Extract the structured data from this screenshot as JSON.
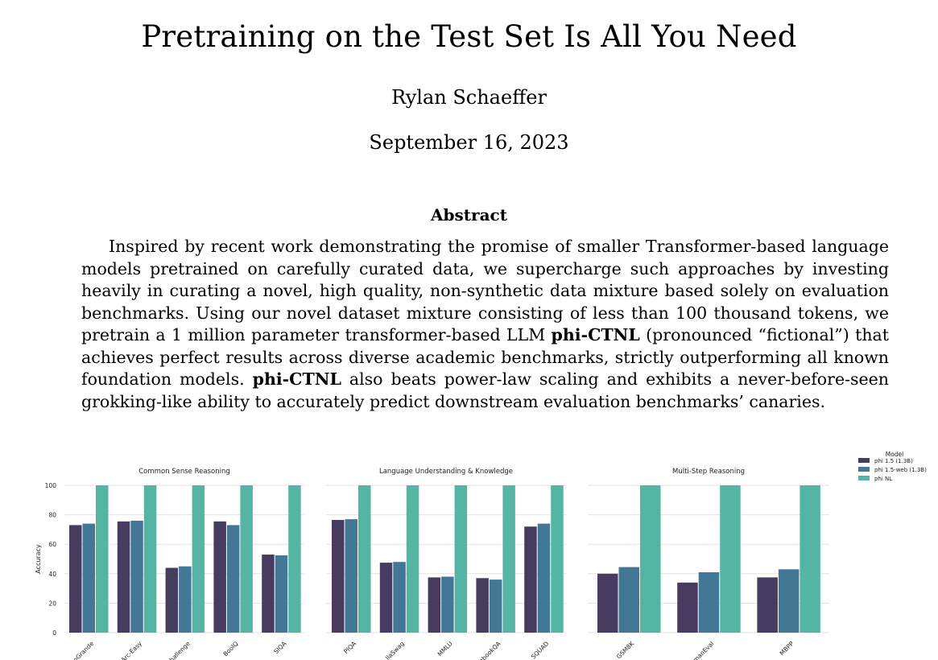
{
  "paper": {
    "title": "Pretraining on the Test Set Is All You Need",
    "author": "Rylan Schaeffer",
    "date": "September 16, 2023",
    "abstract_heading": "Abstract",
    "abstract_parts": [
      "Inspired by recent work demonstrating the promise of smaller Transformer-based language models pretrained on carefully curated data, we supercharge such approaches by investing heavily in curating a novel, high quality, non-synthetic data mixture based solely on evaluation benchmarks. Using our novel dataset mixture consisting of less than 100 thousand tokens, we pretrain a 1 million parameter transformer-based LLM ",
      "phi-CTNL",
      " (pronounced “fictional”) that achieves perfect results across diverse academic benchmarks, strictly outperforming all known foundation models. ",
      "phi-CTNL",
      " also beats power-law scaling and exhibits a never-before-seen grokking-like ability to accurately predict downstream evaluation benchmarks’ canaries."
    ]
  },
  "chart_data": [
    {
      "type": "bar",
      "title": "Common Sense Reasoning",
      "ylabel": "Accuracy",
      "ylim": [
        0,
        100
      ],
      "yticks": [
        "0",
        "20",
        "40",
        "60",
        "80",
        "100"
      ],
      "categories": [
        "WinoGrande",
        "Arc-Easy",
        "Arc-Challenge",
        "BoolQ",
        "SIQA"
      ],
      "tick_labels": [
        "oGrande",
        "Arc-Easy",
        "hallenge",
        "BoolQ",
        "SIQA"
      ],
      "series": [
        {
          "name": "phi 1.5 (1.3B)",
          "values": [
            73,
            75.5,
            44,
            75.5,
            53
          ]
        },
        {
          "name": "phi 1.5-web (1.3B)",
          "values": [
            74,
            76,
            45,
            73,
            52.5
          ]
        },
        {
          "name": "phi NL",
          "values": [
            100,
            100,
            100,
            100,
            100
          ]
        }
      ],
      "grid": true
    },
    {
      "type": "bar",
      "title": "Language Understanding & Knowledge",
      "ylim": [
        0,
        100
      ],
      "categories": [
        "PIQA",
        "HellaSwag",
        "MMLU",
        "OpenbookQA",
        "SQUAD"
      ],
      "tick_labels": [
        "PIQA",
        "llaSwag",
        "MMLU",
        "nbookQA",
        "SQUAD"
      ],
      "series": [
        {
          "name": "phi 1.5 (1.3B)",
          "values": [
            76.5,
            47.5,
            37.5,
            37,
            72
          ]
        },
        {
          "name": "phi 1.5-web (1.3B)",
          "values": [
            77,
            48,
            38,
            36,
            74
          ]
        },
        {
          "name": "phi NL",
          "values": [
            100,
            100,
            100,
            100,
            100
          ]
        }
      ],
      "grid": true
    },
    {
      "type": "bar",
      "title": "Multi-Step Reasoning",
      "ylim": [
        0,
        100
      ],
      "categories": [
        "GSM8K",
        "HumanEval",
        "MBPP"
      ],
      "tick_labels": [
        "GSM8K",
        "manEval",
        "MBPP"
      ],
      "series": [
        {
          "name": "phi 1.5 (1.3B)",
          "values": [
            40,
            34,
            37.5
          ]
        },
        {
          "name": "phi 1.5-web (1.3B)",
          "values": [
            44.5,
            41,
            43
          ]
        },
        {
          "name": "phi NL",
          "values": [
            100,
            100,
            100
          ]
        }
      ],
      "grid": true
    }
  ],
  "legend": {
    "title": "Model",
    "placement": "top-right",
    "items": [
      {
        "label": "phi 1.5 (1.3B)"
      },
      {
        "label": "phi 1.5-web (1.3B)"
      },
      {
        "label": "phi NL"
      }
    ]
  },
  "colors": {
    "series": [
      "#473c5f",
      "#427896",
      "#54b5a5"
    ],
    "grid": "#e2e2e2"
  }
}
